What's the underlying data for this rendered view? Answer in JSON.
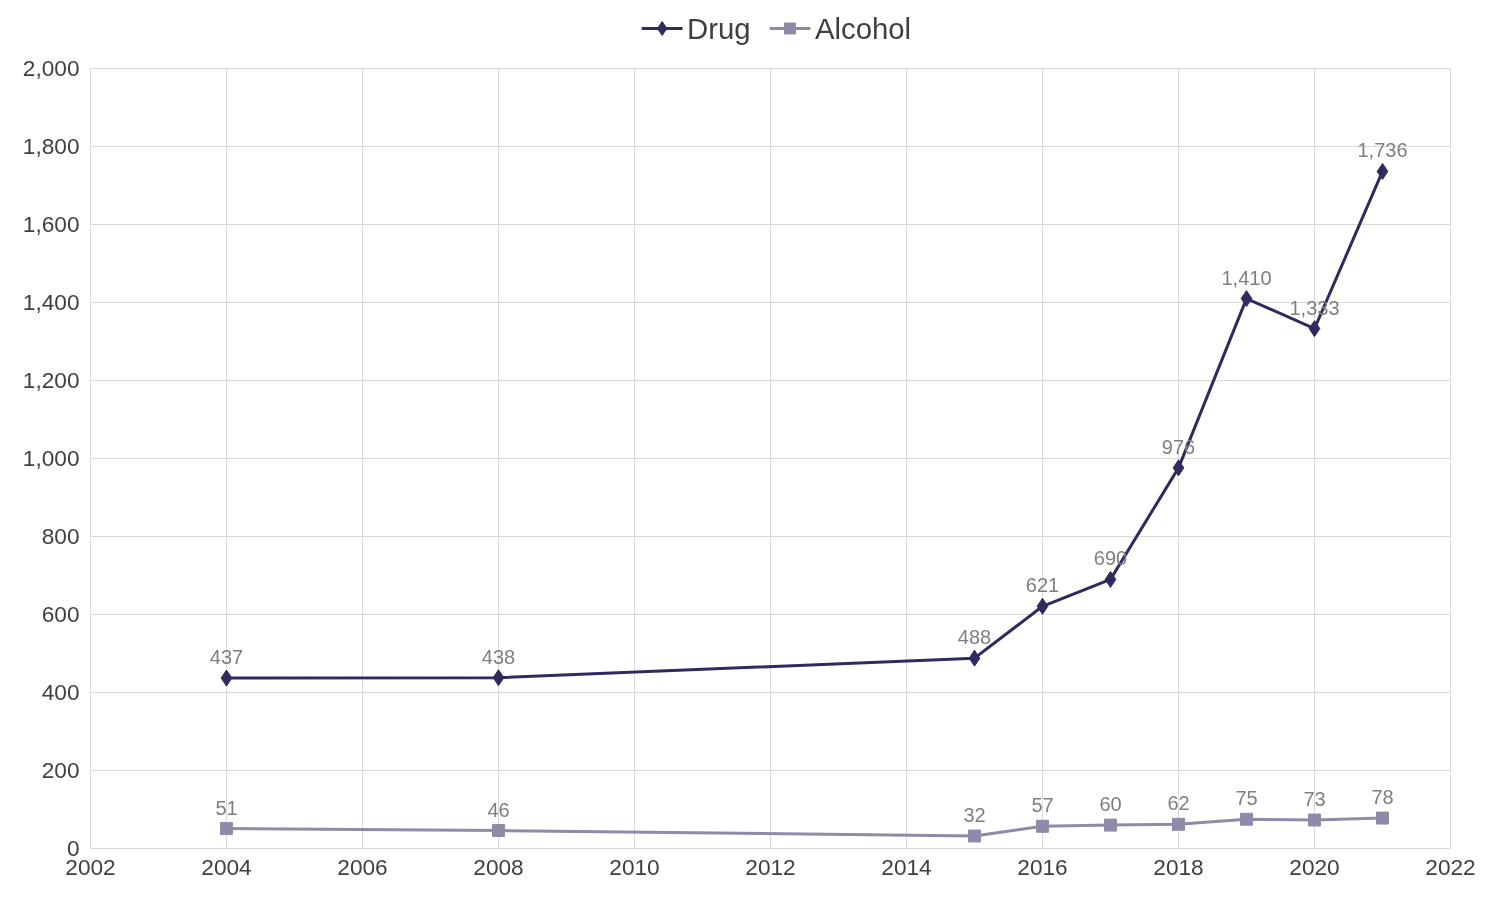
{
  "chart_data": {
    "type": "line",
    "x": [
      2004,
      2008,
      2015,
      2016,
      2017,
      2018,
      2019,
      2020,
      2021
    ],
    "series": [
      {
        "name": "Drug",
        "color": "#2e2b5f",
        "marker": "diamond",
        "values": [
          437,
          438,
          488,
          621,
          690,
          976,
          1410,
          1333,
          1736
        ],
        "value_labels": [
          "437",
          "438",
          "488",
          "621",
          "690",
          "976",
          "1,410",
          "1,333",
          "1,736"
        ]
      },
      {
        "name": "Alcohol",
        "color": "#8e8ba8",
        "marker": "square",
        "values": [
          51,
          46,
          32,
          57,
          60,
          62,
          75,
          73,
          78
        ],
        "value_labels": [
          "51",
          "46",
          "32",
          "57",
          "60",
          "62",
          "75",
          "73",
          "78"
        ]
      }
    ],
    "xlim": [
      2002,
      2022
    ],
    "xticks": [
      2002,
      2004,
      2006,
      2008,
      2010,
      2012,
      2014,
      2016,
      2018,
      2020,
      2022
    ],
    "ylim": [
      0,
      2000
    ],
    "yticks": [
      0,
      200,
      400,
      600,
      800,
      {
        "value": 1000,
        "label": "1,000"
      },
      {
        "value": 1200,
        "label": "1,200"
      },
      {
        "value": 1400,
        "label": "1,400"
      },
      {
        "value": 1600,
        "label": "1,600"
      },
      {
        "value": 1800,
        "label": "1,800"
      },
      {
        "value": 2000,
        "label": "2,000"
      }
    ],
    "grid": true,
    "legend": "top",
    "line_style": "solid"
  }
}
